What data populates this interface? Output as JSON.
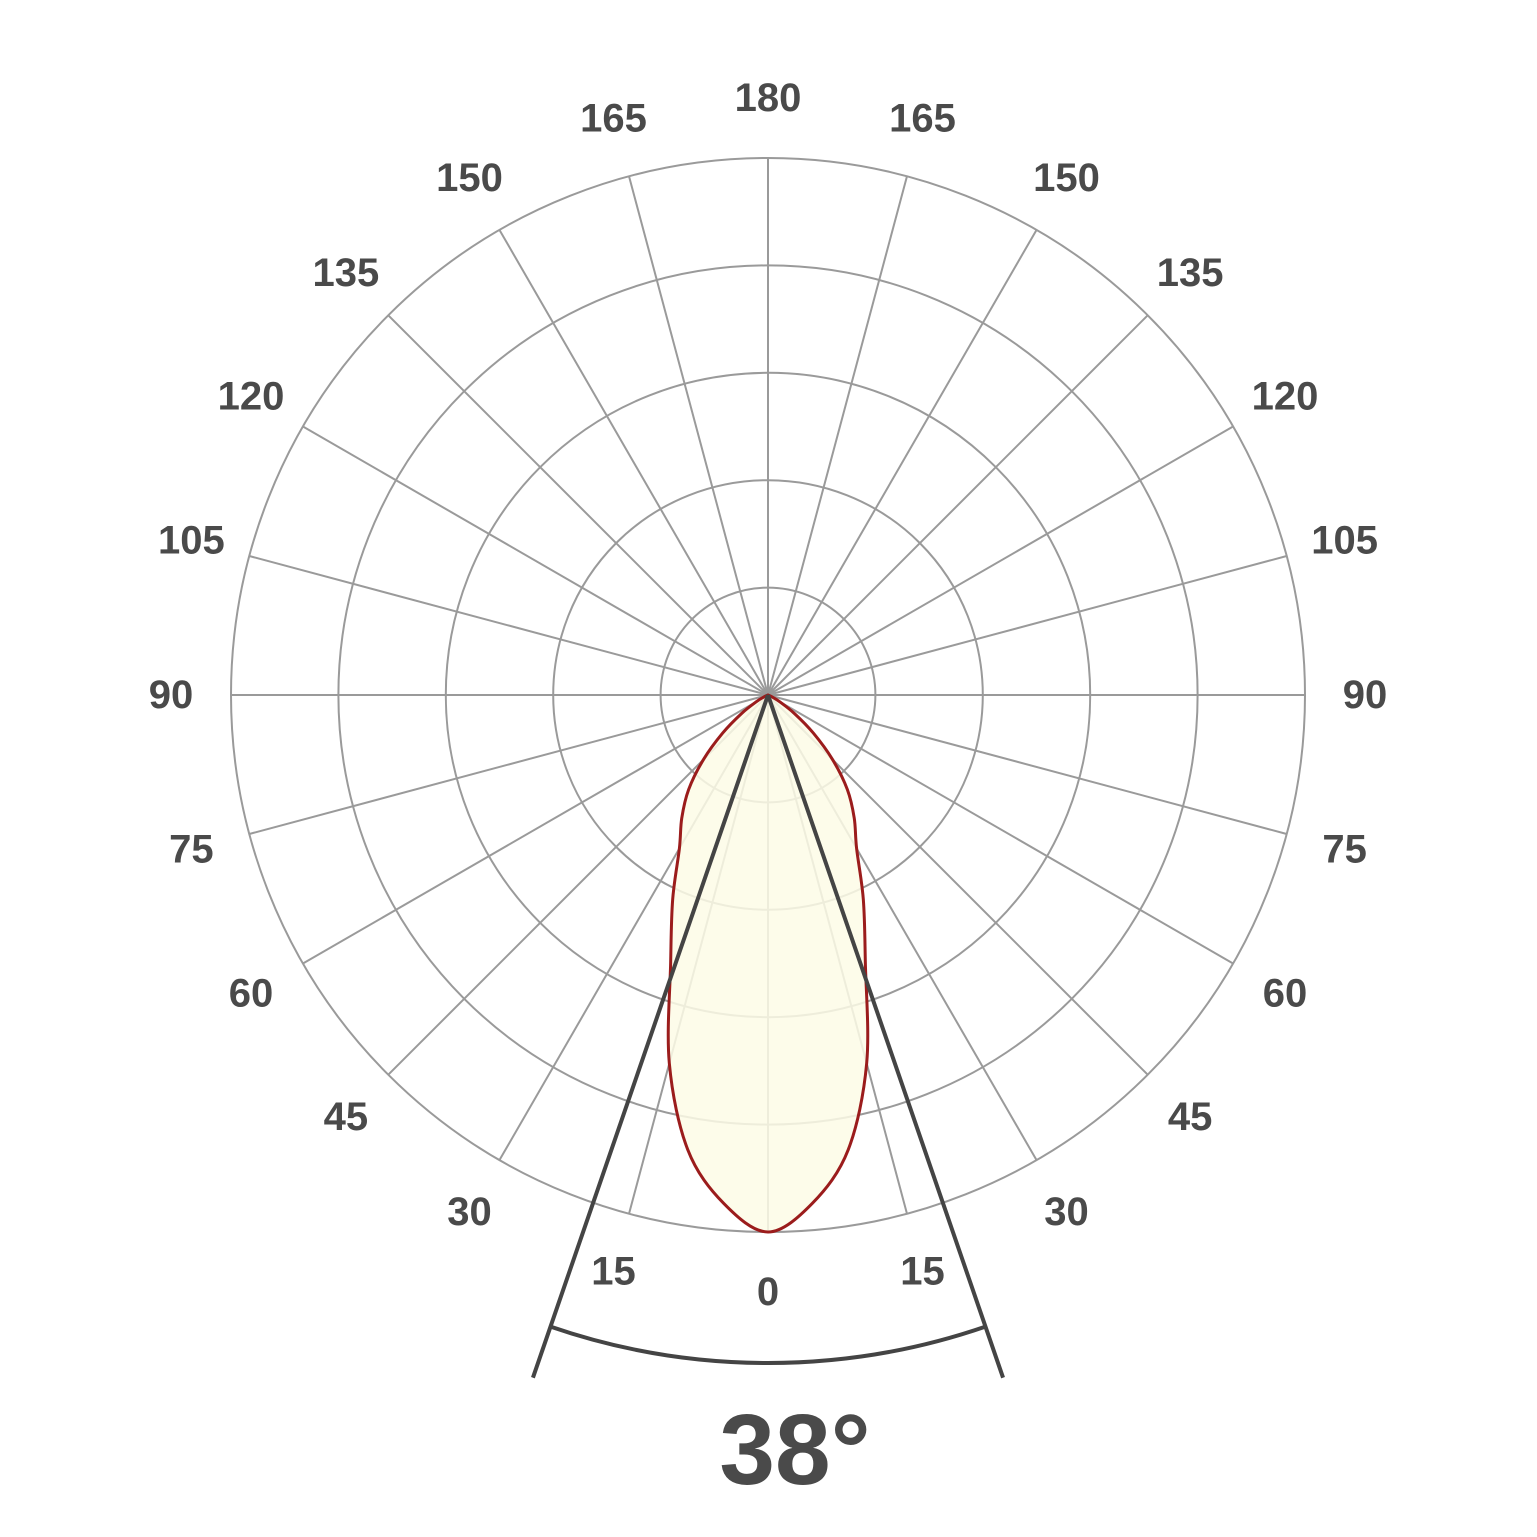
{
  "chart_data": {
    "type": "polar",
    "title": "",
    "angle_tick_labels": [
      "0",
      "15",
      "30",
      "45",
      "60",
      "75",
      "90",
      "105",
      "120",
      "135",
      "150",
      "165",
      "180"
    ],
    "angle_ticks_deg": [
      0,
      15,
      30,
      45,
      60,
      75,
      90,
      105,
      120,
      135,
      150,
      165,
      180
    ],
    "radial_rings": 5,
    "radial_tick_labels": [],
    "grid": true,
    "series": [
      {
        "angles_deg": [
          0,
          5,
          10,
          15,
          20,
          25,
          30,
          35,
          40,
          45,
          50,
          55,
          60,
          65,
          70
        ],
        "relative_intensity": [
          1.0,
          0.95,
          0.86,
          0.71,
          0.53,
          0.42,
          0.33,
          0.28,
          0.23,
          0.17,
          0.11,
          0.06,
          0.025,
          0.008,
          0
        ],
        "symmetric": true
      }
    ],
    "beam_angle_deg": 38,
    "beam_angle_label": "38°",
    "colors": {
      "grid": "#9a9a9a",
      "curve": "#9b1c1c",
      "fill": "#fdfbe6",
      "beam": "#444444",
      "text": "#4a4a4a"
    }
  }
}
